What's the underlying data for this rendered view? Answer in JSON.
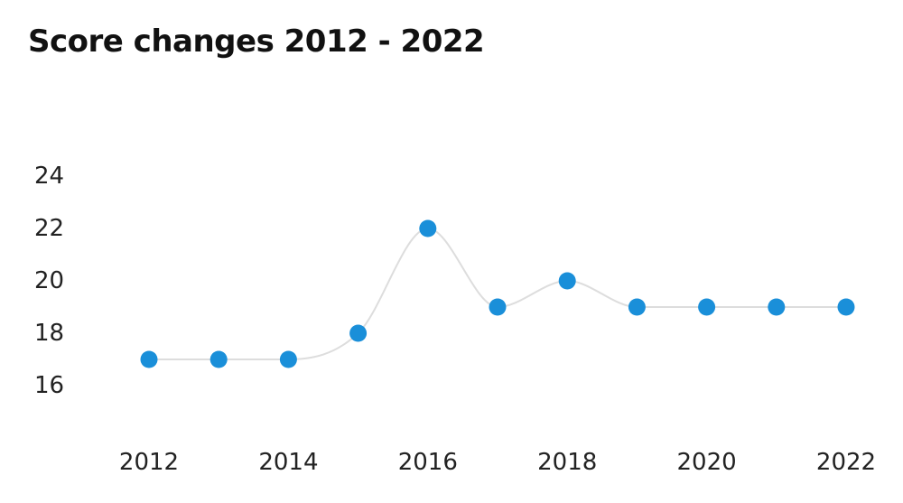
{
  "chart_data": {
    "type": "line",
    "title": "Score changes 2012 - 2022",
    "xlabel": "",
    "ylabel": "",
    "x": [
      2012,
      2013,
      2014,
      2015,
      2016,
      2017,
      2018,
      2019,
      2020,
      2021,
      2022
    ],
    "values": [
      17,
      17,
      17,
      18,
      22,
      19,
      20,
      19,
      19,
      19,
      19
    ],
    "x_tick_labels": [
      "2012",
      "2014",
      "2016",
      "2018",
      "2020",
      "2022"
    ],
    "y_tick_labels": [
      "24",
      "22",
      "20",
      "18",
      "16"
    ],
    "ylim": [
      16,
      24
    ],
    "xlim": [
      2012,
      2022
    ],
    "grid": false,
    "line_color": "#dddddd",
    "marker_color": "#1a8fd9"
  }
}
